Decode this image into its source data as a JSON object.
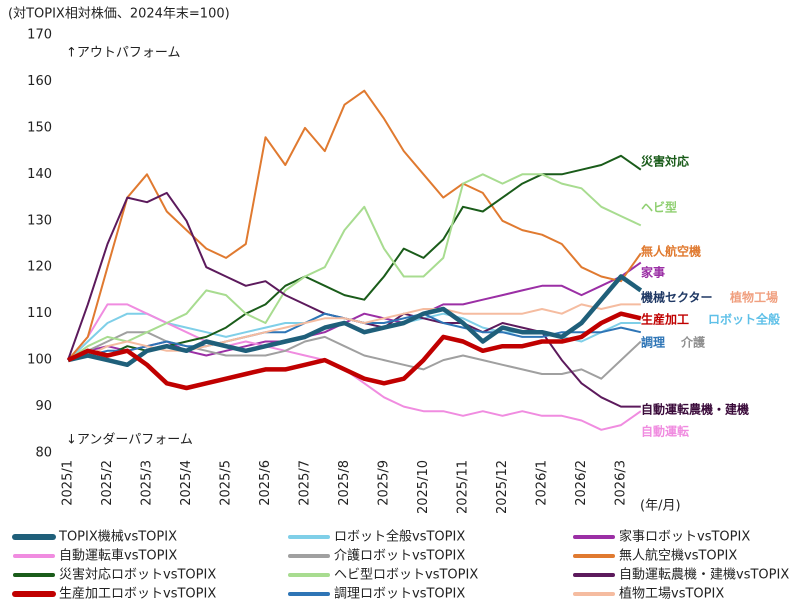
{
  "chart_data": {
    "type": "line",
    "title": "(対TOPIX相対株価、2024年末=100)",
    "annotations_top": "↑アウトパフォーム",
    "annotations_bottom": "↓アンダーパフォーム",
    "x_label": "(年/月)",
    "categories": [
      "2025/1",
      null,
      "2025/2",
      null,
      "2025/3",
      null,
      "2025/4",
      null,
      "2025/5",
      null,
      "2025/6",
      null,
      "2025/7",
      null,
      "2025/8",
      null,
      "2025/9",
      null,
      "2025/10",
      null,
      "2025/11",
      null,
      "2025/12",
      null,
      "2026/1",
      null,
      "2026/2",
      null,
      "2026/3",
      null
    ],
    "ylim": [
      80,
      170
    ],
    "yticks": [
      80,
      90,
      100,
      110,
      120,
      130,
      140,
      150,
      160,
      170
    ],
    "series": [
      {
        "name": "TOPIX機械vsTOPIX",
        "color": "#1f5f7a",
        "thick": true,
        "values": [
          100,
          101,
          100,
          99,
          102,
          103,
          102,
          104,
          103,
          102,
          103,
          104,
          105,
          107,
          108,
          106,
          107,
          108,
          110,
          111,
          108,
          104,
          107,
          106,
          106,
          105,
          108,
          113,
          118,
          115
        ]
      },
      {
        "name": "ロボット全般vsTOPIX",
        "color": "#7fcfe8",
        "values": [
          100,
          104,
          108,
          110,
          110,
          108,
          107,
          106,
          105,
          106,
          107,
          108,
          108,
          110,
          109,
          108,
          107,
          108,
          109,
          110,
          109,
          107,
          106,
          106,
          106,
          105,
          104,
          106,
          108,
          108
        ]
      },
      {
        "name": "家事ロボットvsTOPIX",
        "color": "#9b2fa5",
        "values": [
          100,
          102,
          103,
          102,
          103,
          104,
          102,
          101,
          102,
          103,
          104,
          104,
          105,
          106,
          108,
          110,
          109,
          108,
          110,
          112,
          112,
          113,
          114,
          115,
          116,
          116,
          114,
          116,
          118,
          121
        ]
      },
      {
        "name": "自動運転車vsTOPIX",
        "color": "#f08ce0",
        "values": [
          100,
          105,
          112,
          112,
          110,
          108,
          106,
          104,
          103,
          104,
          103,
          102,
          101,
          100,
          98,
          95,
          92,
          90,
          89,
          89,
          88,
          89,
          88,
          89,
          88,
          88,
          87,
          85,
          86,
          89
        ]
      },
      {
        "name": "介護ロボットvsTOPIX",
        "color": "#a0a0a0",
        "values": [
          100,
          102,
          104,
          106,
          106,
          104,
          103,
          102,
          101,
          101,
          101,
          102,
          104,
          105,
          103,
          101,
          100,
          99,
          98,
          100,
          101,
          100,
          99,
          98,
          97,
          97,
          98,
          96,
          100,
          104
        ]
      },
      {
        "name": "無人航空機vsTOPIX",
        "color": "#e07a30",
        "values": [
          100,
          105,
          120,
          135,
          140,
          132,
          128,
          124,
          122,
          125,
          148,
          142,
          150,
          145,
          155,
          158,
          152,
          145,
          140,
          135,
          138,
          136,
          130,
          128,
          127,
          125,
          120,
          118,
          117,
          123
        ]
      },
      {
        "name": "災害対応ロボットvsTOPIX",
        "color": "#1a5c1a",
        "values": [
          100,
          102,
          101,
          103,
          102,
          103,
          104,
          105,
          107,
          110,
          112,
          116,
          118,
          116,
          114,
          113,
          118,
          124,
          122,
          126,
          133,
          132,
          135,
          138,
          140,
          140,
          141,
          142,
          144,
          141
        ]
      },
      {
        "name": "ヘビ型ロボットvsTOPIX",
        "color": "#a8dc90",
        "values": [
          100,
          103,
          105,
          104,
          106,
          108,
          110,
          115,
          114,
          110,
          108,
          115,
          118,
          120,
          128,
          133,
          124,
          118,
          118,
          122,
          138,
          140,
          138,
          140,
          140,
          138,
          137,
          133,
          131,
          129
        ]
      },
      {
        "name": "自動運転農機・建機vsTOPIX",
        "color": "#5c1a5c",
        "values": [
          100,
          112,
          125,
          135,
          134,
          136,
          130,
          120,
          118,
          116,
          117,
          114,
          112,
          110,
          109,
          108,
          107,
          110,
          109,
          108,
          108,
          106,
          108,
          107,
          106,
          100,
          95,
          92,
          90,
          90
        ]
      },
      {
        "name": "生産加工ロボットvsTOPIX",
        "color": "#c00000",
        "thick": true,
        "values": [
          100,
          102,
          101,
          102,
          99,
          95,
          94,
          95,
          96,
          97,
          98,
          98,
          99,
          100,
          98,
          96,
          95,
          96,
          100,
          105,
          104,
          102,
          103,
          103,
          104,
          104,
          105,
          108,
          110,
          109
        ]
      },
      {
        "name": "調理ロボットvsTOPIX",
        "color": "#2e75b6",
        "values": [
          100,
          101,
          102,
          102,
          103,
          104,
          103,
          103,
          104,
          105,
          106,
          106,
          108,
          110,
          109,
          108,
          108,
          109,
          110,
          108,
          107,
          106,
          106,
          105,
          105,
          106,
          106,
          106,
          107,
          106
        ]
      },
      {
        "name": "植物工場vsTOPIX",
        "color": "#f5bca0",
        "values": [
          100,
          101,
          103,
          104,
          103,
          102,
          102,
          103,
          104,
          105,
          106,
          107,
          108,
          109,
          109,
          108,
          109,
          110,
          111,
          111,
          110,
          110,
          110,
          110,
          111,
          110,
          112,
          111,
          112,
          112
        ]
      }
    ],
    "labels": [
      {
        "text": "災害対応",
        "color": "#1a5c1a"
      },
      {
        "text": "ヘビ型",
        "color": "#8fcf70"
      },
      {
        "text": "無人航空機",
        "color": "#e07a30"
      },
      {
        "text": "家事",
        "color": "#9b2fa5"
      },
      {
        "text": "機械セクター",
        "color": "#1f3864"
      },
      {
        "text": "植物工場",
        "color": "#f0a080"
      },
      {
        "text": "生産加工",
        "color": "#c00000"
      },
      {
        "text": "ロボット全般",
        "color": "#5ec0e8"
      },
      {
        "text": "調理",
        "color": "#2e75b6"
      },
      {
        "text": "介護",
        "color": "#909090"
      },
      {
        "text": "自動運転農機・建機",
        "color": "#3a0a3a"
      },
      {
        "text": "自動運転",
        "color": "#f08ce0"
      }
    ]
  }
}
